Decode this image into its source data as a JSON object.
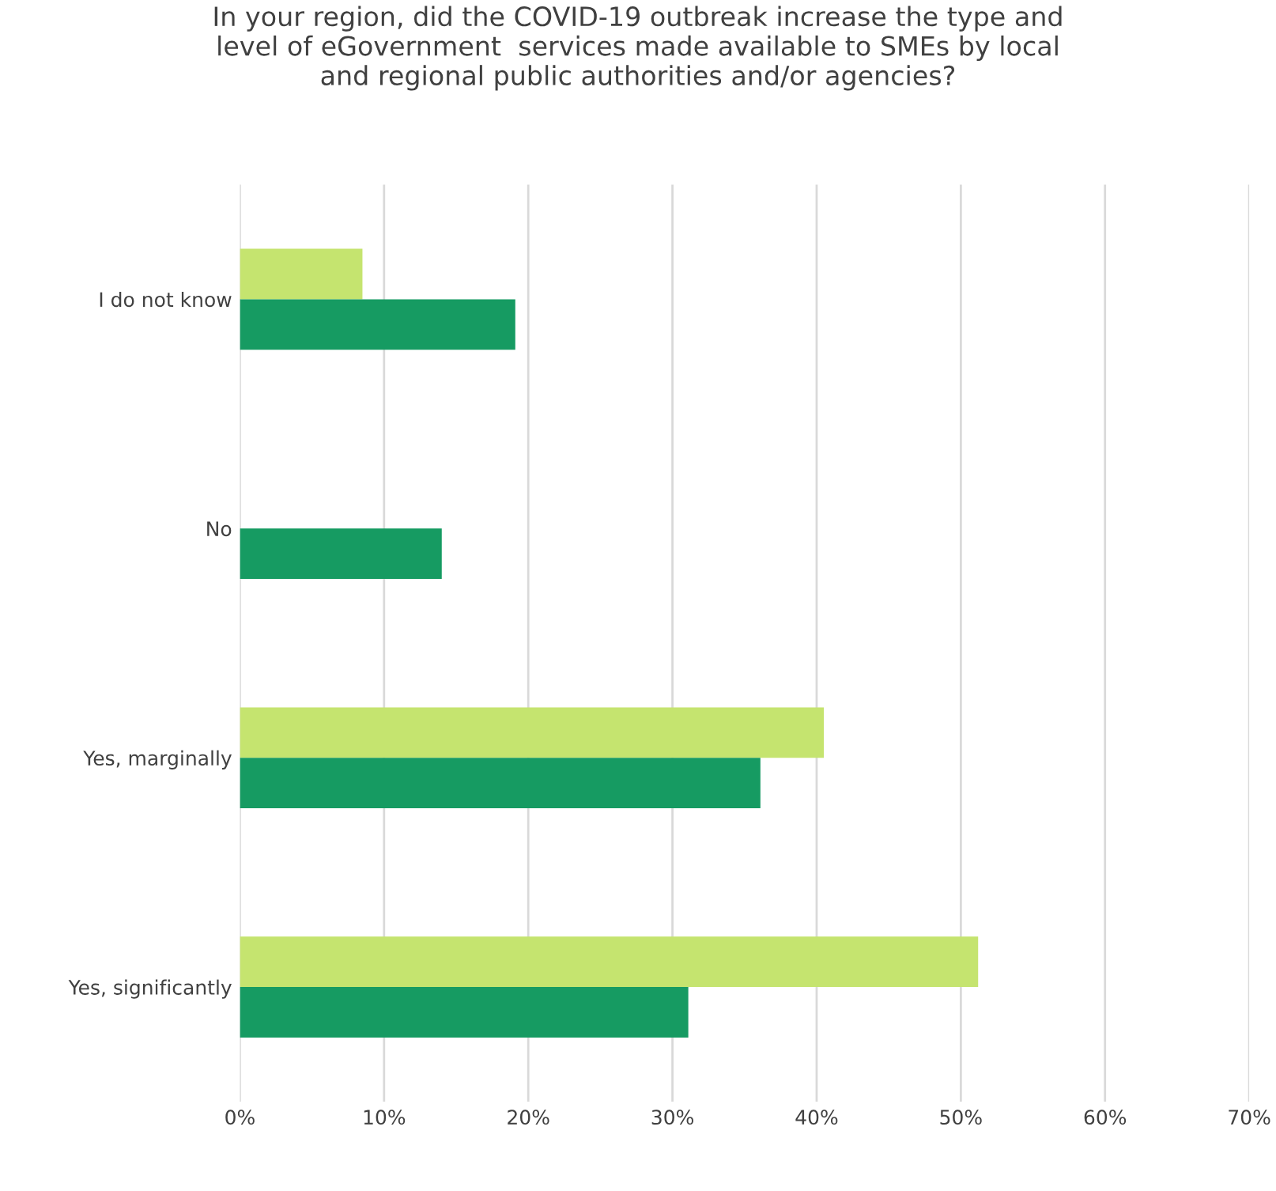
{
  "chart_data": {
    "type": "bar",
    "orientation": "horizontal",
    "title": "In your region, did the COVID-19 outbreak increase the type and\nlevel of eGovernment  services made available to SMEs by local\nand regional public authorities and/or agencies?",
    "categories": [
      "I do not know",
      "No",
      "Yes, marginally",
      "Yes, significantly"
    ],
    "series": [
      {
        "color": "#c5e46f",
        "values": [
          8.5,
          0,
          40.5,
          51.2
        ]
      },
      {
        "color": "#169b62",
        "values": [
          19.1,
          14.0,
          36.1,
          31.1
        ]
      }
    ],
    "xlim": [
      0,
      70
    ],
    "xticks": [
      {
        "value": 0,
        "label": "0%"
      },
      {
        "value": 10,
        "label": "10%"
      },
      {
        "value": 20,
        "label": "20%"
      },
      {
        "value": 30,
        "label": "30%"
      },
      {
        "value": 40,
        "label": "40%"
      },
      {
        "value": 50,
        "label": "50%"
      },
      {
        "value": 60,
        "label": "60%"
      },
      {
        "value": 70,
        "label": "70%"
      }
    ],
    "grid": "x",
    "legend": false
  }
}
